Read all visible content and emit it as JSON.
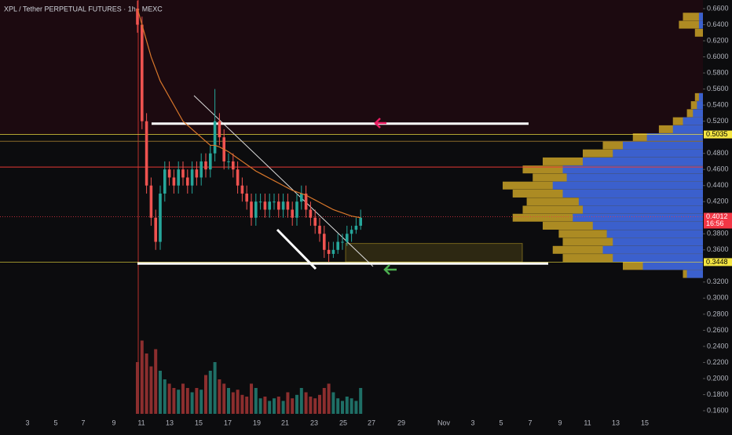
{
  "chart_data": {
    "type": "candlestick",
    "title": "XPL / Tether PERPETUAL FUTURES · 1h · MEXC",
    "xticks": [
      "3",
      "5",
      "7",
      "9",
      "11",
      "13",
      "15",
      "17",
      "19",
      "21",
      "23",
      "25",
      "27",
      "29",
      "Nov",
      "3",
      "5",
      "7",
      "9",
      "11",
      "13",
      "15"
    ],
    "ylim": [
      0.16,
      0.66
    ],
    "yticks": [
      {
        "value": 0.66,
        "label": "0.6600"
      },
      {
        "value": 0.64,
        "label": "0.6400"
      },
      {
        "value": 0.62,
        "label": "0.6200"
      },
      {
        "value": 0.6,
        "label": "0.6000"
      },
      {
        "value": 0.58,
        "label": "0.5800"
      },
      {
        "value": 0.56,
        "label": "0.5600"
      },
      {
        "value": 0.54,
        "label": "0.5400"
      },
      {
        "value": 0.52,
        "label": "0.5200"
      },
      {
        "value": 0.48,
        "label": "0.4800"
      },
      {
        "value": 0.46,
        "label": "0.4600"
      },
      {
        "value": 0.44,
        "label": "0.4400"
      },
      {
        "value": 0.42,
        "label": "0.4200"
      },
      {
        "value": 0.38,
        "label": "0.3800"
      },
      {
        "value": 0.36,
        "label": "0.3600"
      },
      {
        "value": 0.32,
        "label": "0.3200"
      },
      {
        "value": 0.3,
        "label": "0.3000"
      },
      {
        "value": 0.28,
        "label": "0.2800"
      },
      {
        "value": 0.26,
        "label": "0.2600"
      },
      {
        "value": 0.24,
        "label": "0.2400"
      },
      {
        "value": 0.22,
        "label": "0.2200"
      },
      {
        "value": 0.2,
        "label": "0.2000"
      },
      {
        "value": 0.18,
        "label": "0.1800"
      },
      {
        "value": 0.16,
        "label": "0.1600"
      }
    ],
    "open": [
      0.66,
      0.64,
      0.52,
      0.44,
      0.4,
      0.37,
      0.43,
      0.46,
      0.45,
      0.44,
      0.46,
      0.45,
      0.44,
      0.46,
      0.45,
      0.47,
      0.46,
      0.48,
      0.52,
      0.5,
      0.47,
      0.47,
      0.46,
      0.44,
      0.43,
      0.42,
      0.4,
      0.42,
      0.42,
      0.41,
      0.42,
      0.42,
      0.41,
      0.42,
      0.41,
      0.4,
      0.42,
      0.43,
      0.41,
      0.4,
      0.39,
      0.38,
      0.36,
      0.355,
      0.36,
      0.37,
      0.37,
      0.38,
      0.385,
      0.39
    ],
    "high": [
      0.67,
      0.65,
      0.53,
      0.45,
      0.41,
      0.44,
      0.47,
      0.47,
      0.46,
      0.47,
      0.47,
      0.46,
      0.47,
      0.47,
      0.48,
      0.48,
      0.49,
      0.56,
      0.53,
      0.51,
      0.48,
      0.48,
      0.47,
      0.45,
      0.44,
      0.43,
      0.43,
      0.43,
      0.43,
      0.43,
      0.43,
      0.43,
      0.43,
      0.43,
      0.42,
      0.43,
      0.44,
      0.44,
      0.42,
      0.41,
      0.4,
      0.39,
      0.37,
      0.37,
      0.38,
      0.38,
      0.39,
      0.39,
      0.4,
      0.41
    ],
    "low": [
      0.63,
      0.51,
      0.43,
      0.39,
      0.36,
      0.36,
      0.42,
      0.44,
      0.43,
      0.43,
      0.44,
      0.43,
      0.43,
      0.44,
      0.44,
      0.45,
      0.45,
      0.47,
      0.49,
      0.46,
      0.46,
      0.45,
      0.43,
      0.42,
      0.41,
      0.39,
      0.39,
      0.41,
      0.4,
      0.4,
      0.41,
      0.4,
      0.4,
      0.4,
      0.39,
      0.39,
      0.41,
      0.4,
      0.39,
      0.38,
      0.37,
      0.35,
      0.345,
      0.35,
      0.355,
      0.36,
      0.365,
      0.37,
      0.38,
      0.385
    ],
    "close": [
      0.64,
      0.52,
      0.44,
      0.4,
      0.37,
      0.43,
      0.46,
      0.45,
      0.44,
      0.46,
      0.45,
      0.44,
      0.46,
      0.45,
      0.47,
      0.46,
      0.48,
      0.52,
      0.5,
      0.47,
      0.47,
      0.46,
      0.44,
      0.43,
      0.42,
      0.4,
      0.42,
      0.42,
      0.41,
      0.42,
      0.42,
      0.41,
      0.42,
      0.41,
      0.4,
      0.42,
      0.43,
      0.41,
      0.4,
      0.39,
      0.38,
      0.36,
      0.355,
      0.36,
      0.37,
      0.37,
      0.38,
      0.385,
      0.39,
      0.4
    ],
    "volume": [
      60,
      85,
      70,
      55,
      75,
      50,
      40,
      35,
      30,
      28,
      35,
      30,
      25,
      30,
      28,
      45,
      50,
      60,
      40,
      35,
      30,
      25,
      28,
      22,
      20,
      35,
      30,
      18,
      20,
      15,
      18,
      20,
      15,
      25,
      18,
      22,
      30,
      25,
      20,
      18,
      22,
      30,
      35,
      25,
      18,
      15,
      20,
      18,
      15,
      30
    ],
    "moving_average": {
      "color": "#d9772b",
      "values": [
        0.66,
        0.64,
        0.62,
        0.6,
        0.585,
        0.57,
        0.56,
        0.55,
        0.54,
        0.53,
        0.52,
        0.515,
        0.51,
        0.505,
        0.5,
        0.495,
        0.49,
        0.49,
        0.488,
        0.485,
        0.482,
        0.478,
        0.474,
        0.47,
        0.466,
        0.462,
        0.458,
        0.455,
        0.452,
        0.449,
        0.446,
        0.443,
        0.44,
        0.437,
        0.434,
        0.432,
        0.43,
        0.428,
        0.425,
        0.422,
        0.419,
        0.416,
        0.413,
        0.41,
        0.408,
        0.406,
        0.404,
        0.402,
        0.401,
        0.4
      ]
    },
    "levels": {
      "resistance": 0.517,
      "support": 0.343,
      "red_line": 0.463,
      "brown_line": 0.495
    },
    "zone": [
      0.345,
      0.368
    ],
    "price_tags": [
      {
        "value": 0.5035,
        "label": "0.5035",
        "color": "#f5e642"
      },
      {
        "value": 0.4012,
        "label": "0.4012",
        "sub": "16:56",
        "color": "#f23645"
      },
      {
        "value": 0.3448,
        "label": "0.3448",
        "color": "#f5e642"
      }
    ],
    "volume_profile": {
      "prices": [
        0.33,
        0.34,
        0.35,
        0.36,
        0.37,
        0.38,
        0.39,
        0.4,
        0.41,
        0.42,
        0.43,
        0.44,
        0.45,
        0.46,
        0.47,
        0.48,
        0.49,
        0.5,
        0.51,
        0.52,
        0.53,
        0.54,
        0.55,
        0.63,
        0.64,
        0.65
      ],
      "total": [
        10,
        40,
        70,
        75,
        70,
        72,
        80,
        95,
        90,
        88,
        95,
        100,
        85,
        90,
        80,
        60,
        50,
        35,
        22,
        15,
        8,
        6,
        4,
        4,
        12,
        10
      ],
      "buy": [
        8,
        30,
        45,
        50,
        45,
        48,
        55,
        65,
        60,
        62,
        70,
        75,
        68,
        70,
        60,
        45,
        40,
        28,
        15,
        10,
        5,
        3,
        2,
        0,
        2,
        2
      ]
    }
  }
}
